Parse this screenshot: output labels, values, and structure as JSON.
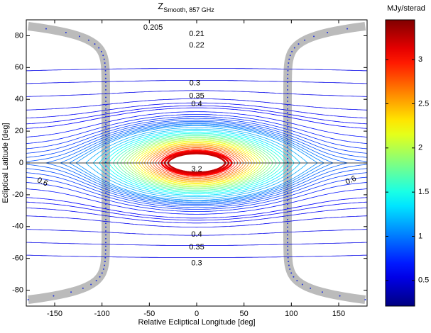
{
  "chart_data": {
    "type": "contour",
    "title": "Z",
    "title_subscript": "Smooth, 857 GHz",
    "xlabel": "Relative Ecliptical Longitude [deg]",
    "ylabel": "Ecliptical Latitude [deg]",
    "xlim": [
      -180,
      180
    ],
    "xticks": [
      -150,
      -100,
      -50,
      0,
      50,
      100,
      150
    ],
    "ylim": [
      -90,
      90
    ],
    "yticks": [
      -80,
      -60,
      -40,
      -20,
      0,
      20,
      40,
      60,
      80
    ],
    "colorbar": {
      "label": "MJy/sterad",
      "lim": [
        0.21,
        3.45
      ],
      "ticks": [
        0.5,
        1,
        1.5,
        2,
        2.5,
        3
      ],
      "colormap": "jet"
    },
    "contour_levels": [
      0.205,
      0.21,
      0.22,
      0.24,
      0.26,
      0.28,
      0.3,
      0.35,
      0.4,
      0.45,
      0.5,
      0.55,
      0.6,
      0.65,
      0.7,
      0.75,
      0.8,
      0.9,
      1.0,
      1.1,
      1.2,
      1.3,
      1.4,
      1.5,
      1.6,
      1.7,
      1.8,
      1.9,
      2.0,
      2.1,
      2.2,
      2.3,
      2.4,
      2.5,
      2.6,
      2.7,
      2.8,
      2.9,
      3.0,
      3.1,
      3.2
    ],
    "contour_labels": [
      0.205,
      0.21,
      0.22,
      0.3,
      0.35,
      0.4,
      3.2,
      0.6,
      0.6,
      0.4,
      0.35,
      0.3
    ]
  }
}
